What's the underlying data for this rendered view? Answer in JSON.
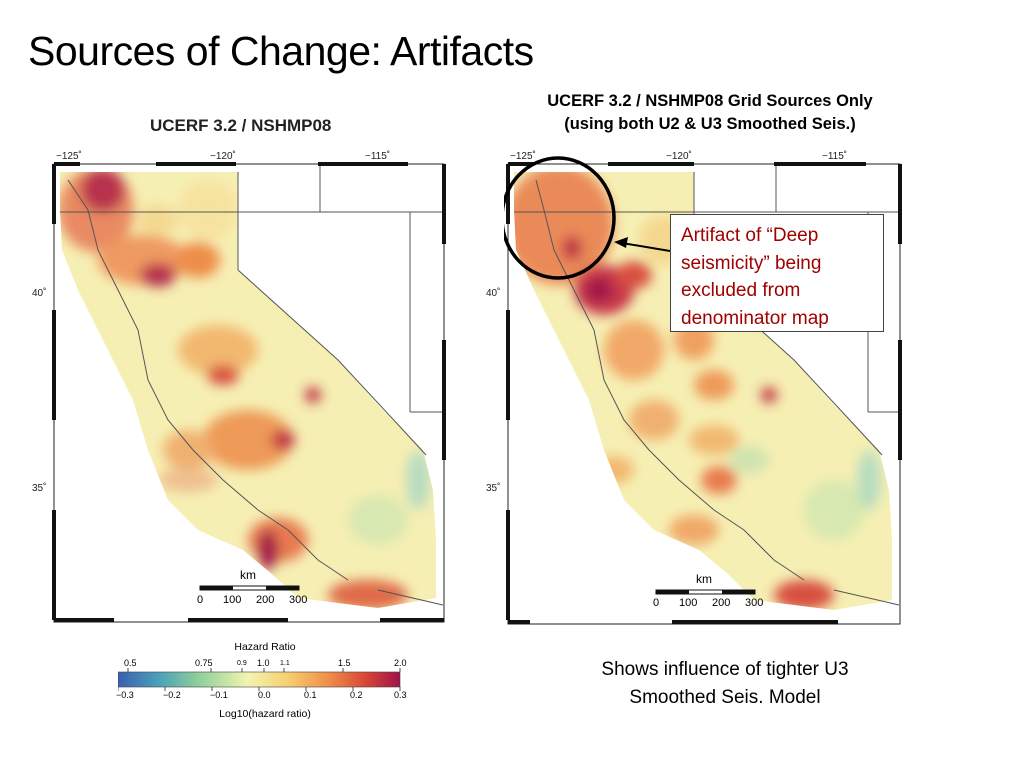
{
  "slide": {
    "title": "Sources of Change: Artifacts"
  },
  "left_map": {
    "title": "UCERF 3.2 / NSHMP08",
    "lon_labels": [
      "−125˚",
      "−120˚",
      "−115˚"
    ],
    "lat_labels": [
      "40˚",
      "35˚"
    ],
    "scale": {
      "unit": "km",
      "ticks": [
        "0",
        "100",
        "200",
        "300"
      ]
    }
  },
  "right_map": {
    "title_line1": "UCERF 3.2 / NSHMP08 Grid Sources Only",
    "title_line2": "(using both U2 & U3 Smoothed Seis.)",
    "lon_labels": [
      "−125˚",
      "−120˚",
      "−115˚"
    ],
    "lat_labels": [
      "40˚",
      "35˚"
    ],
    "scale": {
      "unit": "km",
      "ticks": [
        "0",
        "100",
        "200",
        "300"
      ]
    }
  },
  "annotation": {
    "text": "Artifact of “Deep seismicity” being excluded from denominator map",
    "color": "#a00000"
  },
  "caption": {
    "line1": "Shows influence of tighter U3",
    "line2": "Smoothed Seis. Model"
  },
  "colorbar": {
    "title": "Hazard Ratio",
    "top_labels": [
      "0.5",
      "0.75",
      "0.9",
      "1.0",
      "1.1",
      "1.5",
      "2.0"
    ],
    "bottom_labels": [
      "−0.3",
      "−0.2",
      "−0.1",
      "0.0",
      "0.1",
      "0.2",
      "0.3"
    ],
    "axis_label": "Log10(hazard ratio)",
    "colors": [
      "#3a5fb0",
      "#4aa0b8",
      "#8fcf9a",
      "#f2f4b0",
      "#f7d070",
      "#ee8d4a",
      "#d84535",
      "#a0124a"
    ]
  }
}
